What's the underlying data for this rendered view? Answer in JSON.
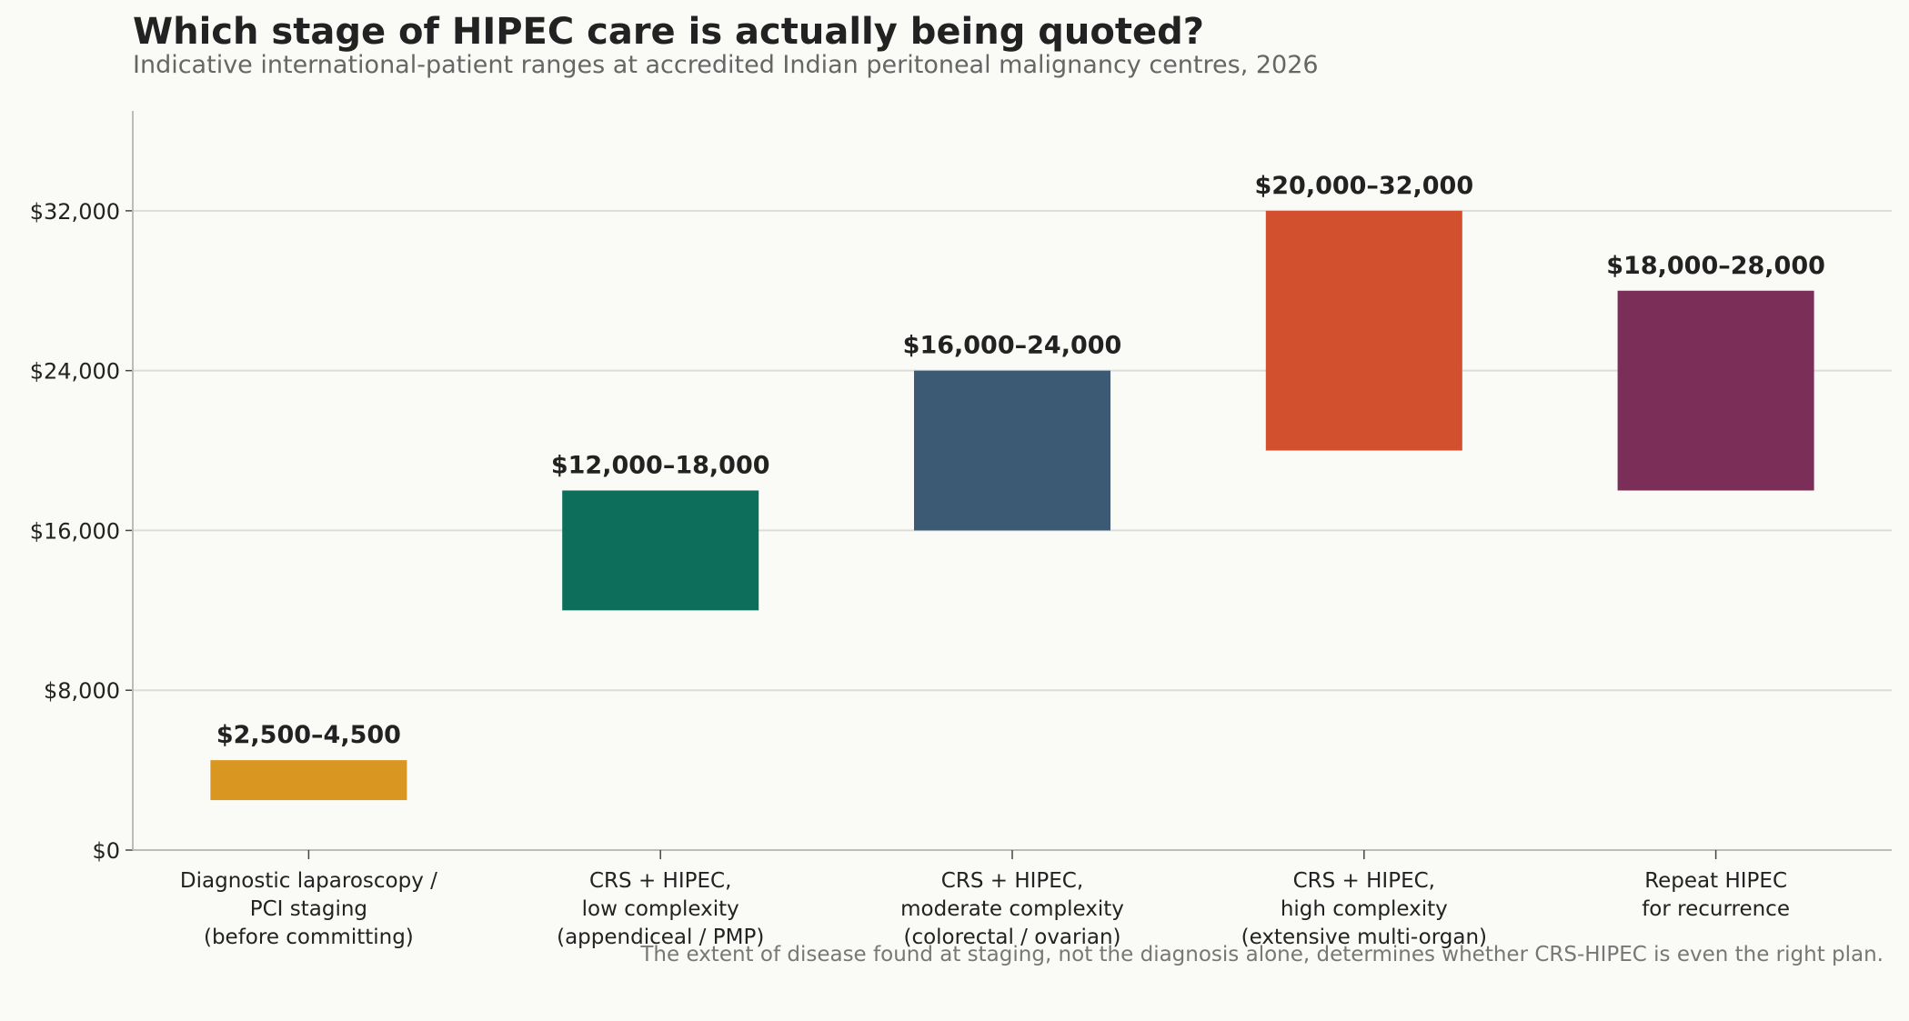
{
  "chart_data": {
    "type": "bar",
    "subtype": "floating-range",
    "title": "Which stage of HIPEC care is actually being quoted?",
    "subtitle": "Indicative international-patient ranges at accredited Indian peritoneal malignancy centres, 2026",
    "footnote": "The extent of disease found at staging, not the diagnosis alone, determines whether CRS-HIPEC is even the right plan.",
    "xlabel": "",
    "ylabel": "",
    "ylim": [
      0,
      37000
    ],
    "yticks": [
      0,
      8000,
      16000,
      24000,
      32000
    ],
    "ytick_labels": [
      "$0",
      "$8,000",
      "$16,000",
      "$24,000",
      "$32,000"
    ],
    "grid": "horizontal",
    "legend": "none",
    "categories": [
      [
        "Diagnostic laparoscopy /",
        "PCI staging",
        "(before committing)"
      ],
      [
        "CRS + HIPEC,",
        "low complexity",
        "(appendiceal / PMP)"
      ],
      [
        "CRS + HIPEC,",
        "moderate complexity",
        "(colorectal / ovarian)"
      ],
      [
        "CRS + HIPEC,",
        "high complexity",
        "(extensive multi-organ)"
      ],
      [
        "Repeat HIPEC",
        "for recurrence"
      ]
    ],
    "low": [
      2500,
      12000,
      16000,
      20000,
      18000
    ],
    "high": [
      4500,
      18000,
      24000,
      32000,
      28000
    ],
    "labels": [
      "$2,500–4,500",
      "$12,000–18,000",
      "$16,000–24,000",
      "$20,000–32,000",
      "$18,000–28,000"
    ],
    "colors": [
      "#d99621",
      "#0e6e5c",
      "#3c5a73",
      "#d2502e",
      "#7a2e58"
    ]
  }
}
